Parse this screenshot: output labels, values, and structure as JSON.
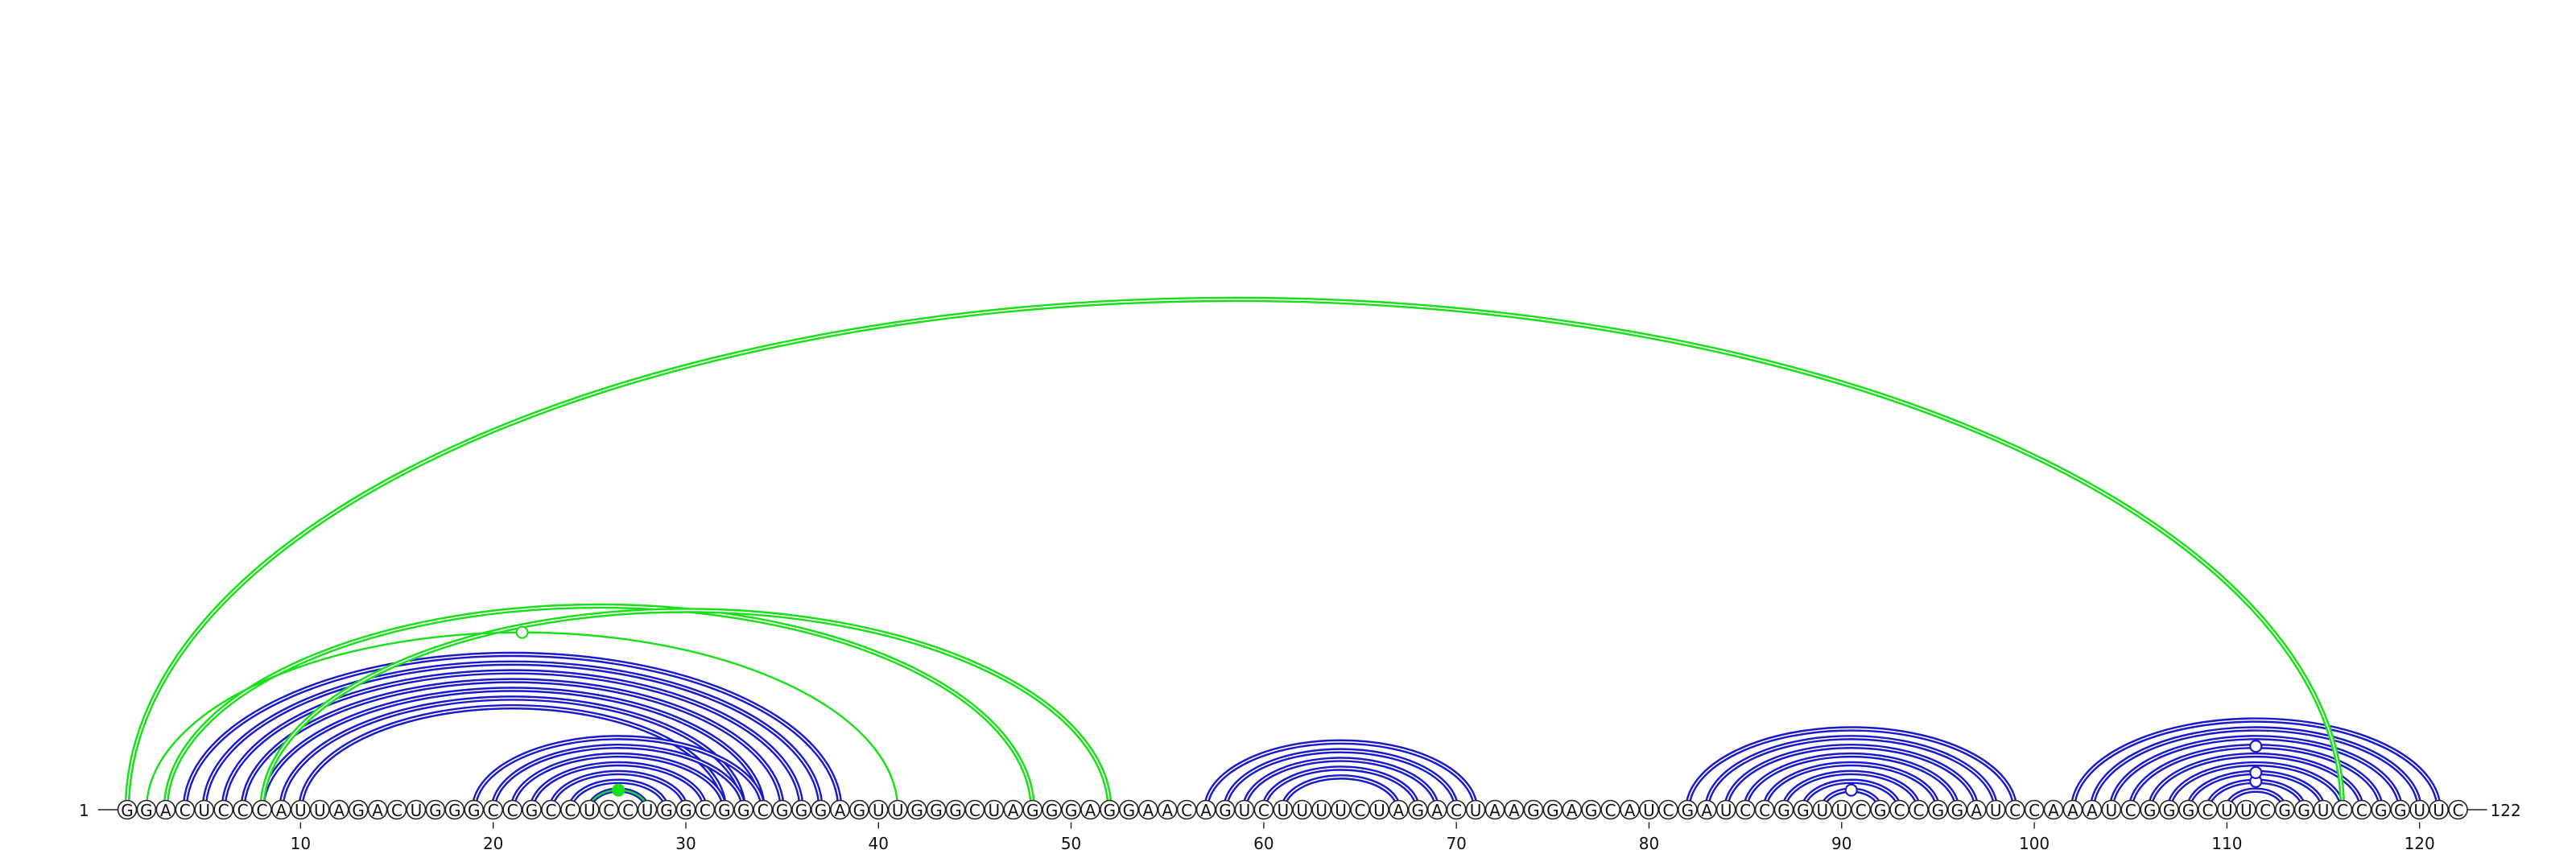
{
  "sequence": "GGACUCCCAUUAGACUGGGCCGCCUCCUGGCGGCGGGAGUUGGGCUAGGGAGGAACAGUCUUUUCUAGACUAAGGAGCAUCGAUCCGGUUCGCCGGAUCCAAAUCGGGCUUCGGUCCGGUUC",
  "start_label": "1",
  "end_label": "122",
  "tick_labels": [
    "10",
    "20",
    "30",
    "40",
    "50",
    "60",
    "70",
    "80",
    "90",
    "100",
    "110",
    "120"
  ],
  "colors": {
    "blue": "#1a1acc",
    "green": "#18e018",
    "outline": "#222222"
  },
  "helices": [
    {
      "color": "blue",
      "i": 4,
      "j": 38,
      "count": 7
    },
    {
      "color": "blue",
      "i": 19,
      "j": 34,
      "count": 7
    },
    {
      "color": "blue",
      "i": 57,
      "j": 71,
      "count": 5
    },
    {
      "color": "blue",
      "i": 82,
      "j": 99,
      "count": 8
    },
    {
      "color": "blue",
      "i": 102,
      "j": 121,
      "count": 9
    },
    {
      "color": "green",
      "i": 1,
      "j": 116,
      "count": 1
    },
    {
      "color": "green",
      "i": 3,
      "j": 48,
      "count": 1
    },
    {
      "color": "green",
      "i": 8,
      "j": 52,
      "count": 1
    },
    {
      "color": "green",
      "i": 2,
      "j": 41,
      "count": 1,
      "thin": true
    },
    {
      "color": "green",
      "i": 25,
      "j": 28,
      "count": 1,
      "thin": true
    }
  ],
  "markers": [
    {
      "color": "green",
      "i": 2,
      "j": 41,
      "fill": false
    },
    {
      "color": "green",
      "i": 25,
      "j": 28,
      "fill": true
    },
    {
      "color": "blue",
      "i": 89,
      "j": 92,
      "fill": false
    },
    {
      "color": "blue",
      "i": 109,
      "j": 114,
      "fill": false
    },
    {
      "color": "blue",
      "i": 108,
      "j": 115,
      "fill": false
    },
    {
      "color": "blue",
      "i": 105,
      "j": 118,
      "fill": false
    }
  ]
}
